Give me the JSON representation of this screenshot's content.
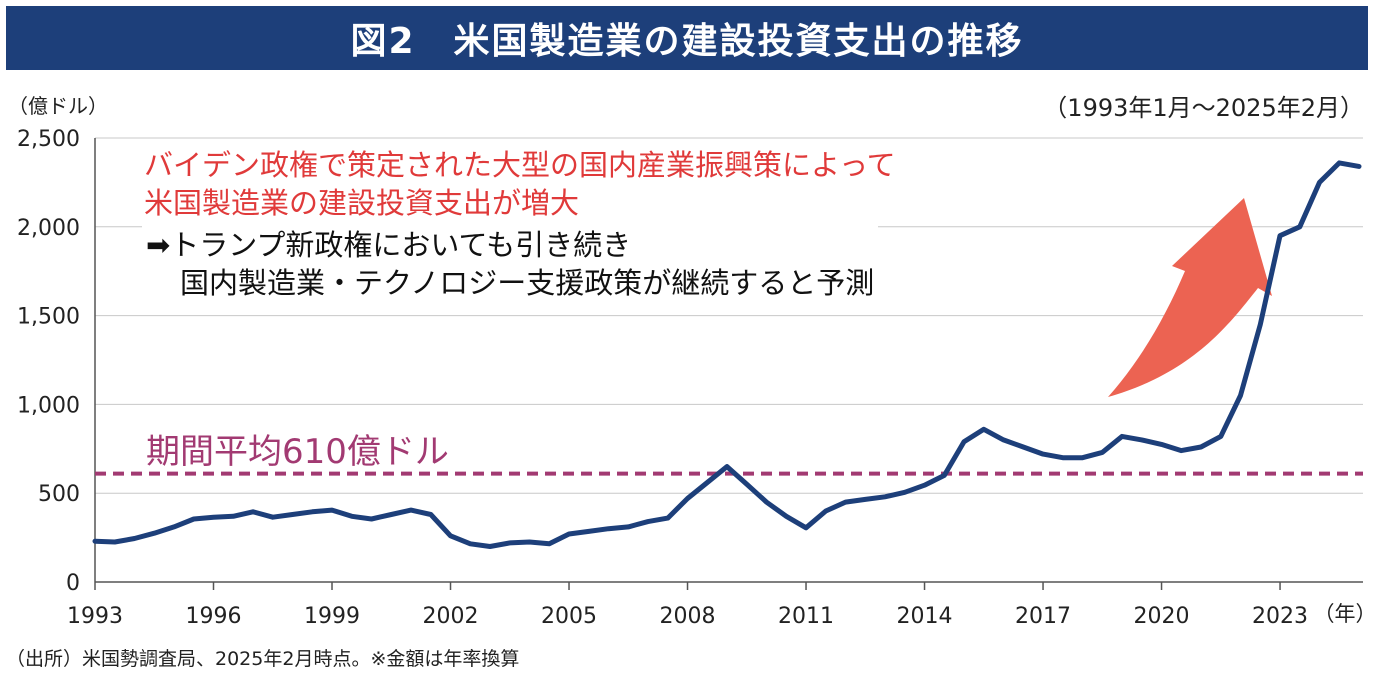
{
  "header": {
    "title": "図2　米国製造業の建設投資支出の推移"
  },
  "unit_label": "（億ドル）",
  "period_label": "（1993年1月～2025年2月）",
  "annotation": {
    "red_line1": "バイデン政権で策定された大型の国内産業振興策によって",
    "red_line2": "米国製造業の建設投資支出が増大",
    "black_line1": "➡トランプ新政権においても引き続き",
    "black_line2": "国内製造業・テクノロジー支援政策が継続すると予測"
  },
  "average_label": "期間平均610億ドル",
  "source_note": "（出所）米国勢調査局、2025年2月時点。※金額は年率換算",
  "colors": {
    "title_bg": "#1d3f7a",
    "series": "#1d3f7a",
    "average_line": "#a23a72",
    "arrow": "#ec6352",
    "annotation_red": "#e03a3a"
  },
  "chart_data": {
    "type": "line",
    "title": "",
    "xlabel": "（年）",
    "ylabel": "（億ドル）",
    "xlim": [
      1993.0,
      2025.1
    ],
    "ylim": [
      0,
      2500
    ],
    "x_ticks": [
      1993,
      1996,
      1999,
      2002,
      2005,
      2008,
      2011,
      2014,
      2017,
      2020,
      2023
    ],
    "x_tick_labels": [
      "1993",
      "1996",
      "1999",
      "2002",
      "2005",
      "2008",
      "2011",
      "2014",
      "2017",
      "2020",
      "2023"
    ],
    "y_ticks": [
      0,
      500,
      1000,
      1500,
      2000,
      2500
    ],
    "y_tick_labels": [
      "0",
      "500",
      "1,000",
      "1,500",
      "2,000",
      "2,500"
    ],
    "grid": "horizontal",
    "average": 610,
    "series": [
      {
        "x": [
          1993.0,
          1993.5,
          1994.0,
          1994.5,
          1995.0,
          1995.5,
          1996.0,
          1996.5,
          1997.0,
          1997.5,
          1998.0,
          1998.5,
          1999.0,
          1999.5,
          2000.0,
          2000.5,
          2001.0,
          2001.5,
          2002.0,
          2002.5,
          2003.0,
          2003.5,
          2004.0,
          2004.5,
          2005.0,
          2005.5,
          2006.0,
          2006.5,
          2007.0,
          2007.5,
          2008.0,
          2008.5,
          2009.0,
          2009.5,
          2010.0,
          2010.5,
          2011.0,
          2011.5,
          2012.0,
          2012.5,
          2013.0,
          2013.5,
          2014.0,
          2014.5,
          2015.0,
          2015.5,
          2016.0,
          2016.5,
          2017.0,
          2017.5,
          2018.0,
          2018.5,
          2019.0,
          2019.5,
          2020.0,
          2020.5,
          2021.0,
          2021.5,
          2022.0,
          2022.5,
          2023.0,
          2023.5,
          2024.0,
          2024.5,
          2025.0
        ],
        "values": [
          230,
          225,
          245,
          275,
          310,
          355,
          365,
          370,
          395,
          365,
          380,
          395,
          405,
          370,
          355,
          380,
          405,
          380,
          260,
          215,
          200,
          220,
          225,
          215,
          270,
          285,
          300,
          310,
          340,
          360,
          470,
          560,
          650,
          550,
          450,
          370,
          305,
          400,
          450,
          465,
          480,
          505,
          545,
          600,
          790,
          860,
          800,
          760,
          720,
          700,
          700,
          730,
          820,
          800,
          775,
          740,
          760,
          820,
          1050,
          1450,
          1950,
          2000,
          2250,
          2360,
          2340
        ]
      }
    ]
  }
}
